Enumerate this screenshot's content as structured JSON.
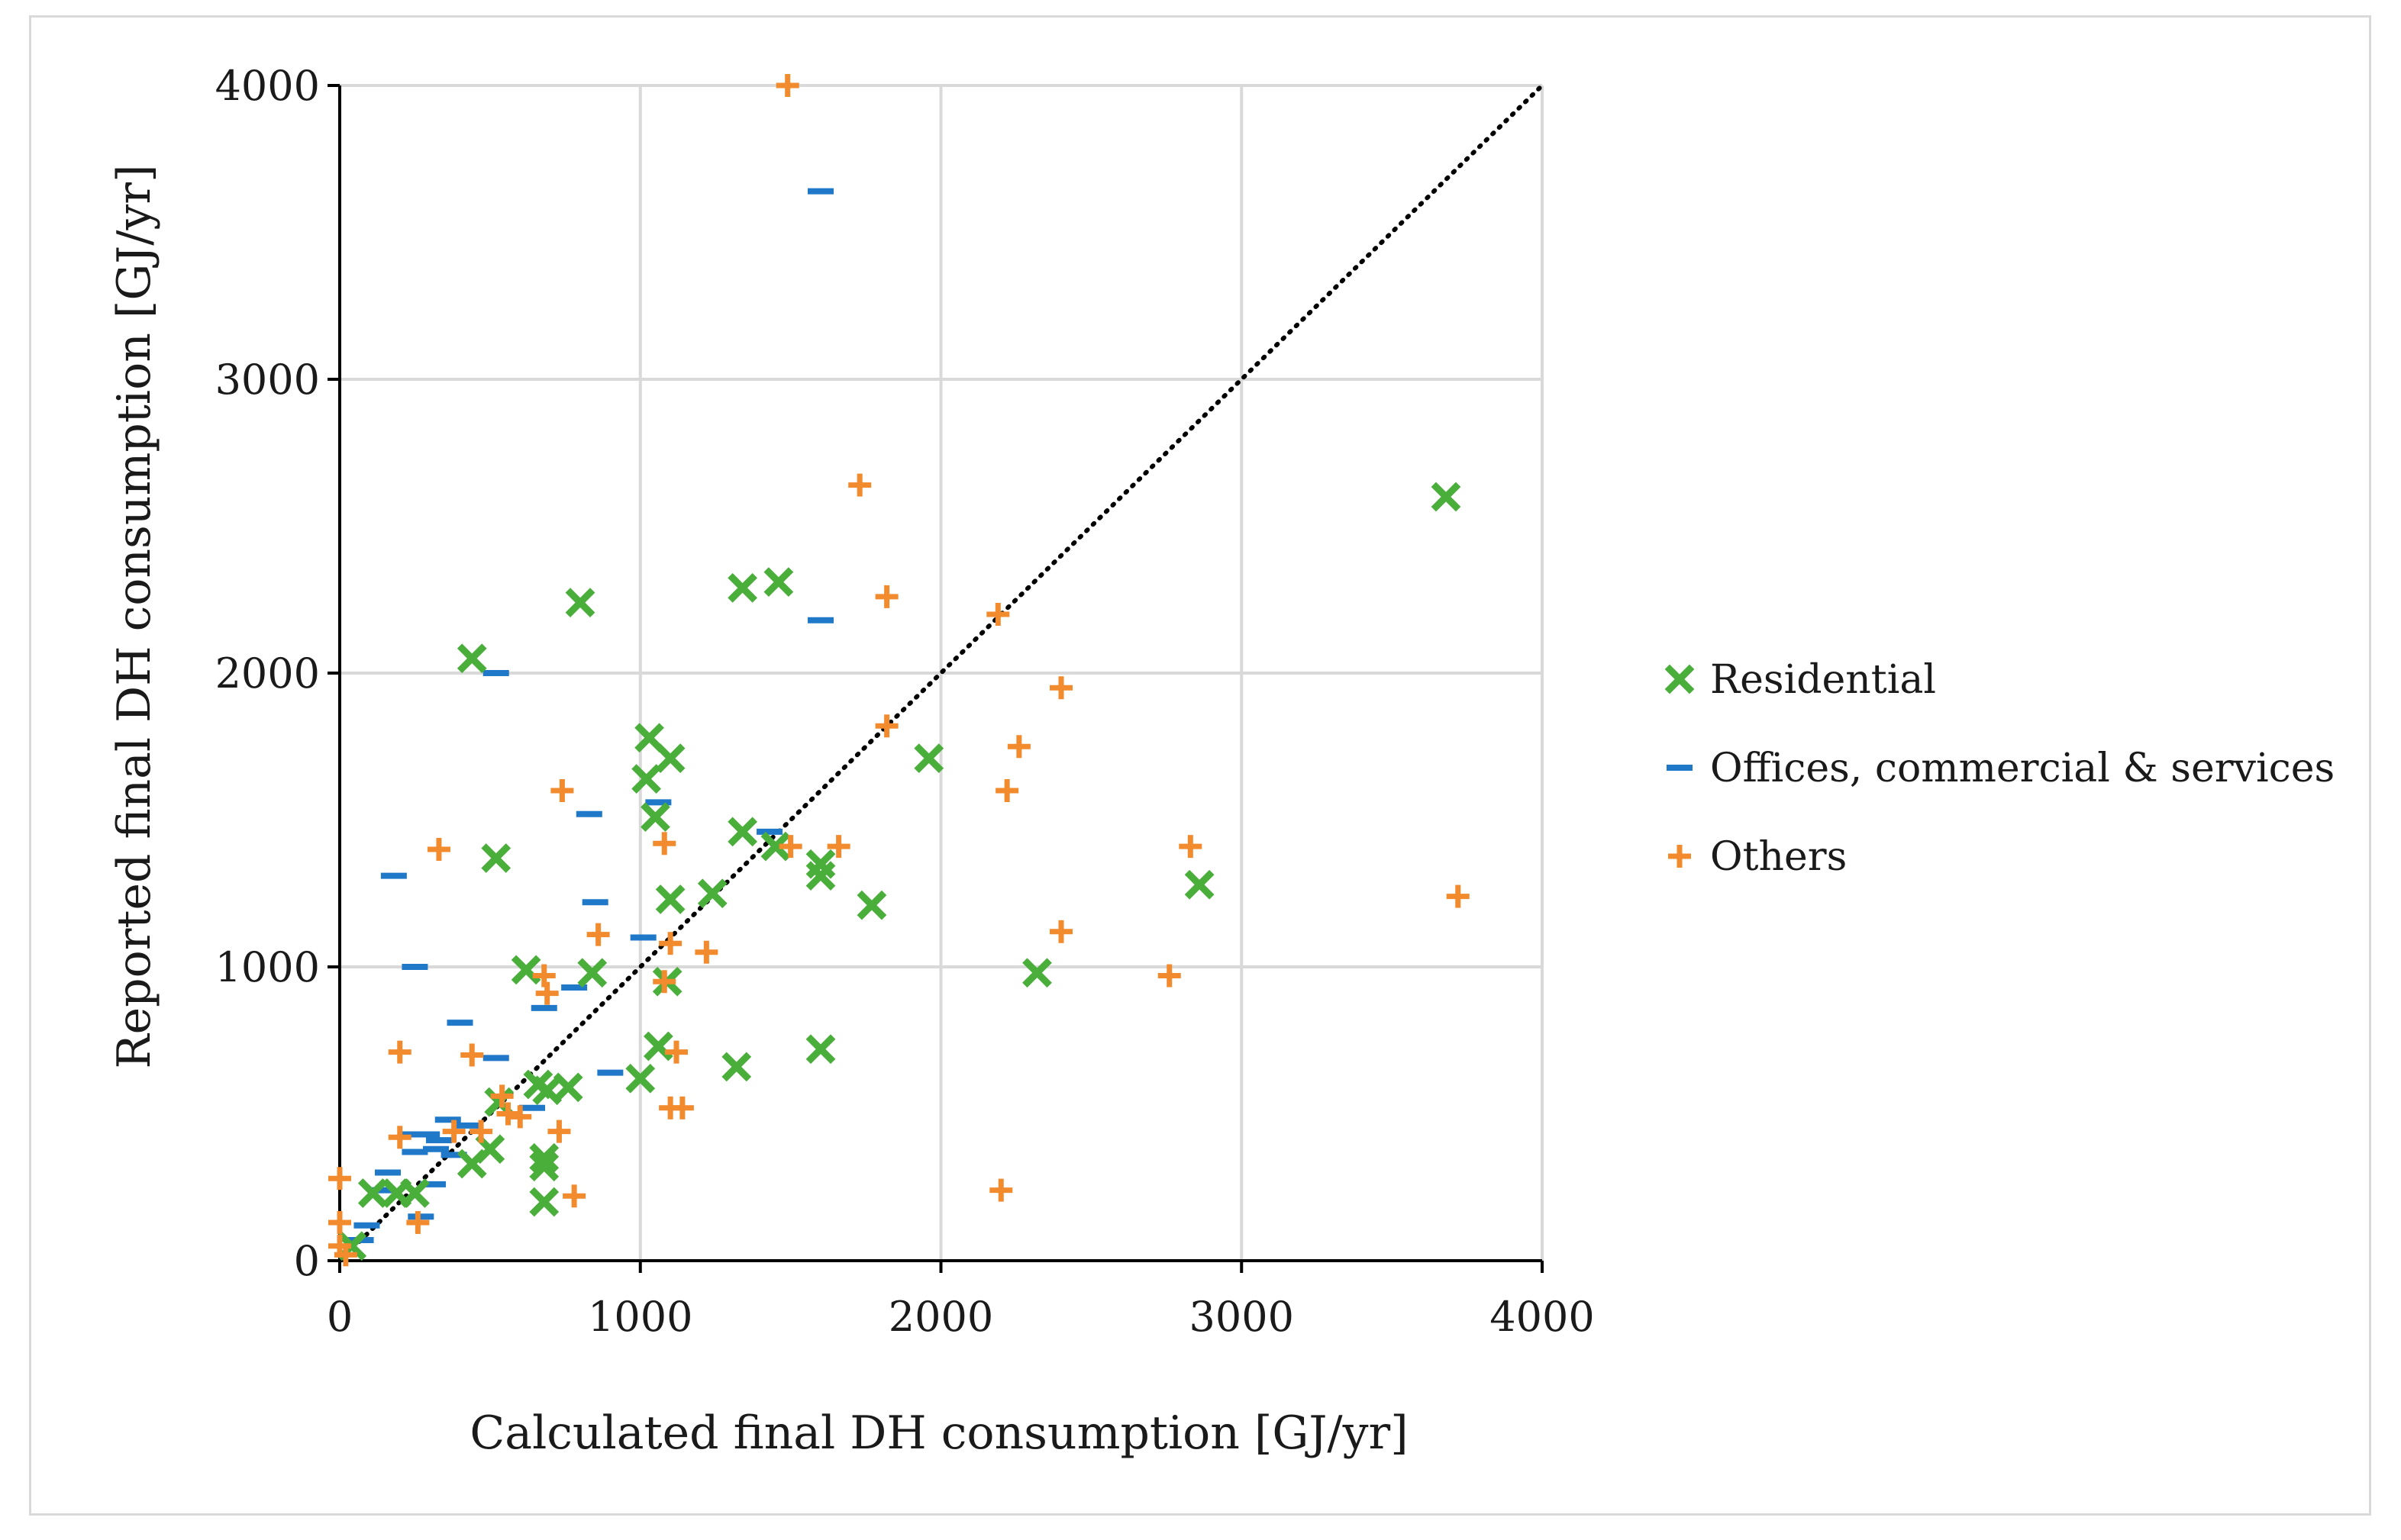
{
  "chart_data": {
    "type": "scatter",
    "xlabel": "Calculated final DH consumption [GJ/yr]",
    "ylabel": "Reported  final DH consumption [GJ/yr]",
    "xlim": [
      0,
      4000
    ],
    "ylim": [
      0,
      4000
    ],
    "xticks": [
      0,
      1000,
      2000,
      3000,
      4000
    ],
    "yticks": [
      0,
      1000,
      2000,
      3000,
      4000
    ],
    "grid": true,
    "reference_line": {
      "style": "dotted",
      "color": "#000000",
      "from": [
        0,
        0
      ],
      "to": [
        4000,
        4000
      ]
    },
    "legend_position": "right",
    "series": [
      {
        "name": "Residential",
        "marker": "x-bold",
        "color": "#4aae3a",
        "points": [
          [
            3680,
            2600
          ],
          [
            440,
            2050
          ],
          [
            800,
            2240
          ],
          [
            1340,
            2290
          ],
          [
            1460,
            2310
          ],
          [
            1030,
            1780
          ],
          [
            1100,
            1710
          ],
          [
            1960,
            1710
          ],
          [
            1020,
            1640
          ],
          [
            1050,
            1510
          ],
          [
            1340,
            1460
          ],
          [
            1450,
            1410
          ],
          [
            1600,
            1350
          ],
          [
            1600,
            1310
          ],
          [
            520,
            1370
          ],
          [
            2860,
            1280
          ],
          [
            1100,
            1230
          ],
          [
            1240,
            1250
          ],
          [
            1770,
            1210
          ],
          [
            620,
            990
          ],
          [
            840,
            980
          ],
          [
            2320,
            980
          ],
          [
            1090,
            950
          ],
          [
            1060,
            730
          ],
          [
            1600,
            720
          ],
          [
            1320,
            660
          ],
          [
            1000,
            620
          ],
          [
            660,
            600
          ],
          [
            690,
            580
          ],
          [
            760,
            590
          ],
          [
            530,
            540
          ],
          [
            500,
            380
          ],
          [
            440,
            330
          ],
          [
            680,
            350
          ],
          [
            680,
            320
          ],
          [
            680,
            200
          ],
          [
            110,
            230
          ],
          [
            190,
            230
          ],
          [
            250,
            230
          ],
          [
            40,
            50
          ]
        ]
      },
      {
        "name": "Offices, commercial & services",
        "marker": "dash",
        "color": "#1f78c8",
        "points": [
          [
            1600,
            3640
          ],
          [
            1600,
            2180
          ],
          [
            520,
            2000
          ],
          [
            1060,
            1560
          ],
          [
            830,
            1520
          ],
          [
            1430,
            1460
          ],
          [
            180,
            1310
          ],
          [
            850,
            1220
          ],
          [
            1010,
            1100
          ],
          [
            250,
            1000
          ],
          [
            780,
            930
          ],
          [
            680,
            860
          ],
          [
            400,
            810
          ],
          [
            520,
            690
          ],
          [
            900,
            640
          ],
          [
            640,
            520
          ],
          [
            360,
            480
          ],
          [
            430,
            460
          ],
          [
            240,
            430
          ],
          [
            290,
            430
          ],
          [
            330,
            410
          ],
          [
            320,
            380
          ],
          [
            250,
            370
          ],
          [
            380,
            360
          ],
          [
            160,
            300
          ],
          [
            310,
            260
          ],
          [
            140,
            240
          ],
          [
            270,
            150
          ],
          [
            90,
            120
          ],
          [
            70,
            70
          ]
        ]
      },
      {
        "name": "Others",
        "marker": "plus",
        "color": "#f28a2e",
        "points": [
          [
            1490,
            4000
          ],
          [
            1730,
            2640
          ],
          [
            1820,
            2260
          ],
          [
            2190,
            2200
          ],
          [
            2400,
            1950
          ],
          [
            1820,
            1820
          ],
          [
            2260,
            1750
          ],
          [
            2220,
            1600
          ],
          [
            740,
            1600
          ],
          [
            330,
            1400
          ],
          [
            1500,
            1410
          ],
          [
            1660,
            1410
          ],
          [
            2830,
            1410
          ],
          [
            1080,
            1420
          ],
          [
            3720,
            1240
          ],
          [
            860,
            1110
          ],
          [
            2400,
            1120
          ],
          [
            1100,
            1080
          ],
          [
            1220,
            1050
          ],
          [
            680,
            970
          ],
          [
            2760,
            970
          ],
          [
            1080,
            950
          ],
          [
            690,
            910
          ],
          [
            200,
            710
          ],
          [
            1120,
            710
          ],
          [
            440,
            700
          ],
          [
            1100,
            520
          ],
          [
            1140,
            520
          ],
          [
            540,
            560
          ],
          [
            560,
            500
          ],
          [
            600,
            490
          ],
          [
            380,
            440
          ],
          [
            470,
            440
          ],
          [
            200,
            420
          ],
          [
            730,
            440
          ],
          [
            780,
            220
          ],
          [
            260,
            130
          ],
          [
            2200,
            240
          ],
          [
            0,
            280
          ],
          [
            0,
            130
          ],
          [
            0,
            50
          ],
          [
            20,
            20
          ]
        ]
      }
    ]
  }
}
